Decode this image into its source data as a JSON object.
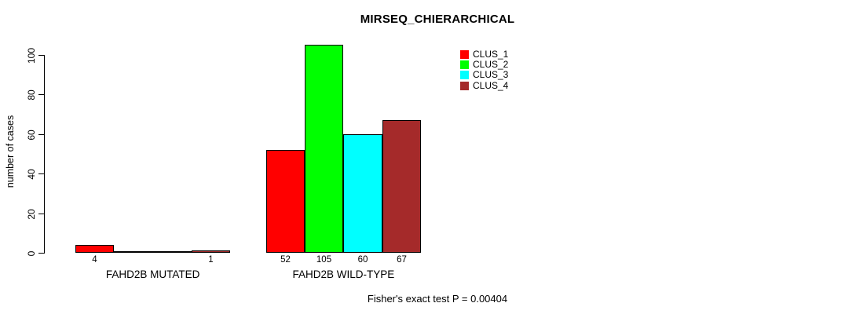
{
  "chart_data": {
    "type": "bar",
    "title": "MIRSEQ_CHIERARCHICAL",
    "ylabel": "number of cases",
    "xlabel": "",
    "ylim": [
      0,
      100
    ],
    "yticks": [
      0,
      20,
      40,
      60,
      80,
      100
    ],
    "grid": false,
    "legend_position": "top-right",
    "series": [
      {
        "name": "CLUS_1",
        "color": "#ff0000"
      },
      {
        "name": "CLUS_2",
        "color": "#00ff00"
      },
      {
        "name": "CLUS_3",
        "color": "#00ffff"
      },
      {
        "name": "CLUS_4",
        "color": "#a52a2a"
      }
    ],
    "groups": [
      {
        "label": "FAHD2B MUTATED",
        "values": [
          4,
          0,
          0,
          1
        ],
        "bar_labels": [
          "4",
          "",
          "",
          "1"
        ]
      },
      {
        "label": "FAHD2B WILD-TYPE",
        "values": [
          52,
          105,
          60,
          67
        ],
        "bar_labels": [
          "52",
          "105",
          "60",
          "67"
        ]
      }
    ],
    "annotation": "Fisher's exact test P = 0.00404"
  },
  "colors": {
    "background": "#ffffff",
    "axis": "#000000",
    "text": "#000000"
  }
}
